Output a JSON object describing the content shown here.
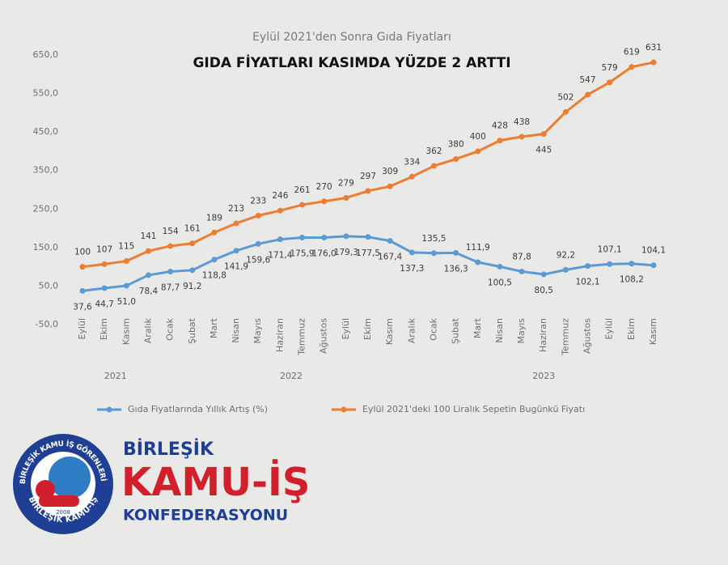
{
  "chart_data": {
    "type": "line",
    "title": "Eylül 2021'den Sonra Gıda Fiyatları",
    "subtitle": "GIDA FİYATLARI KASIMDA YÜZDE 2 ARTTI",
    "categories": [
      "Eylül",
      "Ekim",
      "Kasım",
      "Aralık",
      "Ocak",
      "Şubat",
      "Mart",
      "Nisan",
      "Mayıs",
      "Haziran",
      "Temmuz",
      "Ağustos",
      "Eylül",
      "Ekim",
      "Kasım",
      "Aralık",
      "Ocak",
      "Şubat",
      "Mart",
      "Nisan",
      "Mayıs",
      "Haziran",
      "Temmuz",
      "Ağustos",
      "Eylül",
      "Ekim",
      "Kasım"
    ],
    "x_groups": [
      {
        "label": "2021",
        "count": 4
      },
      {
        "label": "2022",
        "count": 12
      },
      {
        "label": "2023",
        "count": 11
      }
    ],
    "series": [
      {
        "name": "Gıda Fiyatlarında Yıllık Artış (%)",
        "color": "#5b9bd5",
        "values": [
          37.6,
          44.7,
          51.0,
          78.4,
          87.7,
          91.2,
          118.8,
          141.9,
          159.6,
          171.4,
          175.9,
          176.0,
          179.3,
          177.5,
          167.4,
          137.3,
          135.5,
          136.3,
          111.9,
          100.5,
          87.8,
          80.5,
          92.2,
          102.1,
          107.1,
          108.2,
          104.1
        ],
        "value_labels": [
          "37,6",
          "44,7",
          "51,0",
          "78,4",
          "87,7",
          "91,2",
          "118,8",
          "141,9",
          "159,6",
          "171,4",
          "175,9",
          "176,0",
          "179,3",
          "177,5",
          "167,4",
          "137,3",
          "135,5",
          "136,3",
          "111,9",
          "100,5",
          "87,8",
          "80,5",
          "92,2",
          "102,1",
          "107,1",
          "108,2",
          "104,1"
        ]
      },
      {
        "name": "Eylül 2021'deki 100 Liralık Sepetin Bugünkü  Fiyatı",
        "color": "#ed7d31",
        "values": [
          100,
          107,
          115,
          141,
          154,
          161,
          189,
          213,
          233,
          246,
          261,
          270,
          279,
          297,
          309,
          334,
          362,
          380,
          400,
          428,
          438,
          445,
          502,
          547,
          579,
          619,
          631
        ]
      }
    ],
    "ylim": [
      -50,
      650
    ],
    "yticks": [
      {
        "value": -50,
        "label": "-50,0"
      },
      {
        "value": 50,
        "label": "50,0"
      },
      {
        "value": 150,
        "label": "150,0"
      },
      {
        "value": 250,
        "label": "250,0"
      },
      {
        "value": 350,
        "label": "350,0"
      },
      {
        "value": 450,
        "label": "450,0"
      },
      {
        "value": 550,
        "label": "550,0"
      },
      {
        "value": 650,
        "label": "650,0"
      }
    ],
    "grid": false,
    "legend": "bottom"
  },
  "logo": {
    "ring_text": "BİRLEŞİK KAMU İŞ GÖRENLERİ SENDİKALARI KONFEDERASYONU",
    "bottom_text": "BİRLEŞİK KAMU-İŞ",
    "year": "2008",
    "line1": "BİRLEŞİK",
    "line2": "KAMU-İŞ",
    "line3": "KONFEDERASYONU"
  }
}
